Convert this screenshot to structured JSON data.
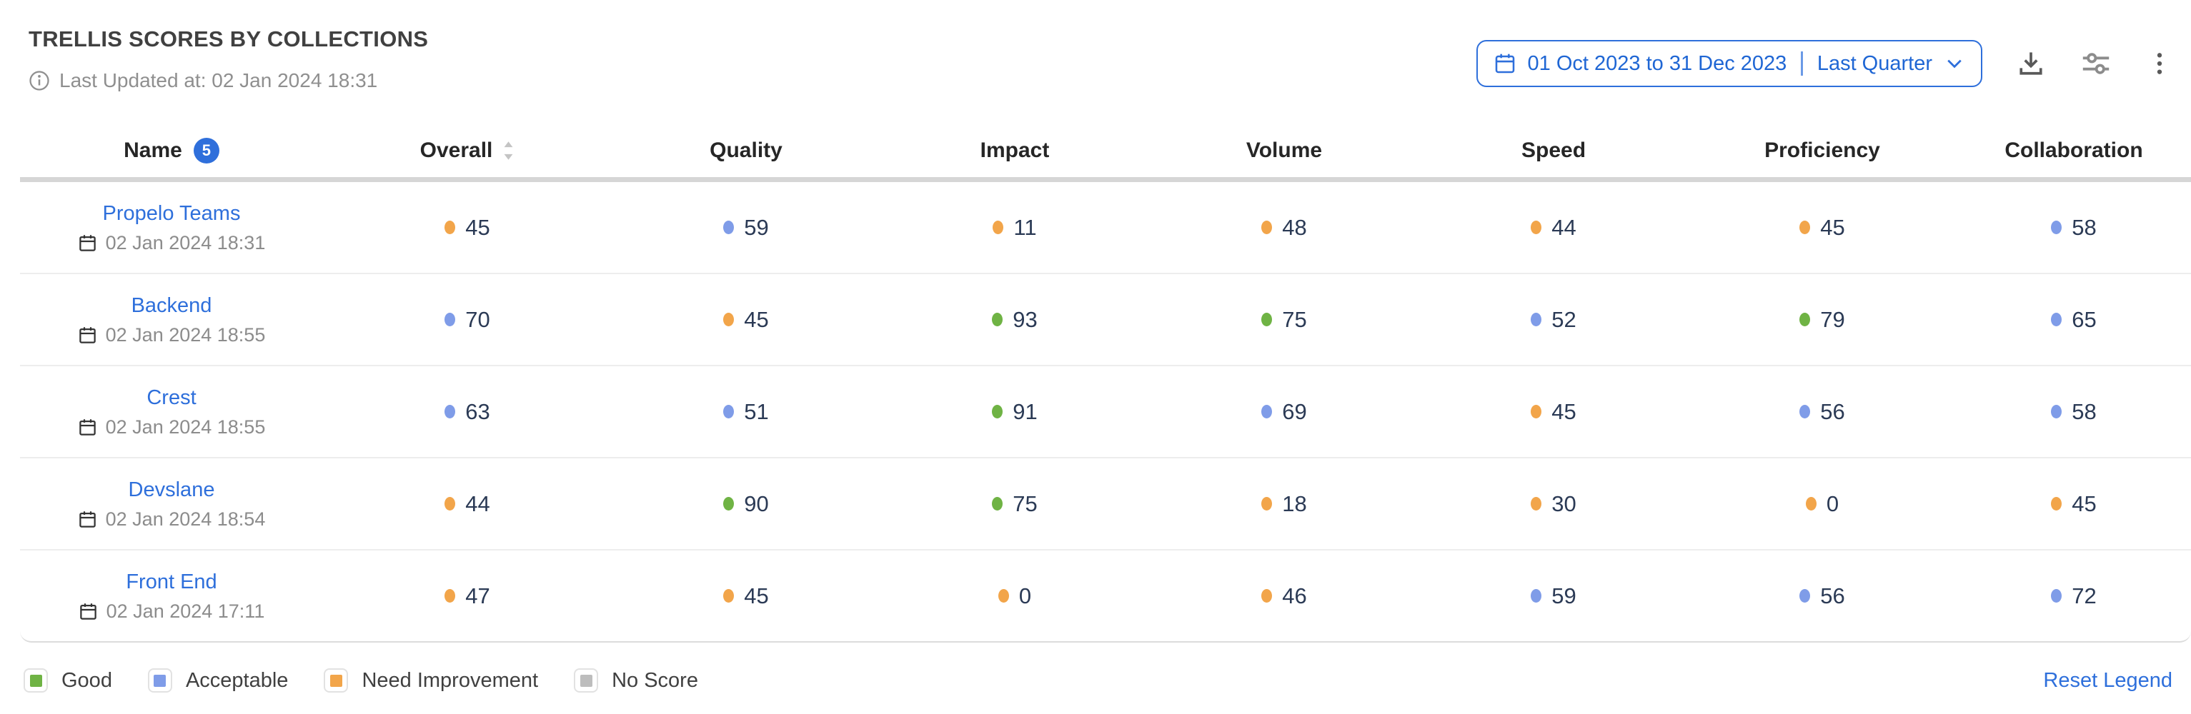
{
  "header": {
    "title": "TRELLIS SCORES BY COLLECTIONS",
    "last_updated": "Last Updated at: 02 Jan 2024 18:31",
    "date_range": "01 Oct 2023 to 31 Dec 2023",
    "date_preset": "Last Quarter"
  },
  "table": {
    "columns": [
      "Name",
      "Overall",
      "Quality",
      "Impact",
      "Volume",
      "Speed",
      "Proficiency",
      "Collaboration"
    ],
    "name_count_badge": "5",
    "rows": [
      {
        "name": "Propelo Teams",
        "date": "02 Jan 2024 18:31",
        "scores": [
          {
            "value": "45",
            "status": "need-improvement"
          },
          {
            "value": "59",
            "status": "acceptable"
          },
          {
            "value": "11",
            "status": "need-improvement"
          },
          {
            "value": "48",
            "status": "need-improvement"
          },
          {
            "value": "44",
            "status": "need-improvement"
          },
          {
            "value": "45",
            "status": "need-improvement"
          },
          {
            "value": "58",
            "status": "acceptable"
          }
        ]
      },
      {
        "name": "Backend",
        "date": "02 Jan 2024 18:55",
        "scores": [
          {
            "value": "70",
            "status": "acceptable"
          },
          {
            "value": "45",
            "status": "need-improvement"
          },
          {
            "value": "93",
            "status": "good"
          },
          {
            "value": "75",
            "status": "good"
          },
          {
            "value": "52",
            "status": "acceptable"
          },
          {
            "value": "79",
            "status": "good"
          },
          {
            "value": "65",
            "status": "acceptable"
          }
        ]
      },
      {
        "name": "Crest",
        "date": "02 Jan 2024 18:55",
        "scores": [
          {
            "value": "63",
            "status": "acceptable"
          },
          {
            "value": "51",
            "status": "acceptable"
          },
          {
            "value": "91",
            "status": "good"
          },
          {
            "value": "69",
            "status": "acceptable"
          },
          {
            "value": "45",
            "status": "need-improvement"
          },
          {
            "value": "56",
            "status": "acceptable"
          },
          {
            "value": "58",
            "status": "acceptable"
          }
        ]
      },
      {
        "name": "Devslane",
        "date": "02 Jan 2024 18:54",
        "scores": [
          {
            "value": "44",
            "status": "need-improvement"
          },
          {
            "value": "90",
            "status": "good"
          },
          {
            "value": "75",
            "status": "good"
          },
          {
            "value": "18",
            "status": "need-improvement"
          },
          {
            "value": "30",
            "status": "need-improvement"
          },
          {
            "value": "0",
            "status": "need-improvement"
          },
          {
            "value": "45",
            "status": "need-improvement"
          }
        ]
      },
      {
        "name": "Front End",
        "date": "02 Jan 2024 17:11",
        "scores": [
          {
            "value": "47",
            "status": "need-improvement"
          },
          {
            "value": "45",
            "status": "need-improvement"
          },
          {
            "value": "0",
            "status": "need-improvement"
          },
          {
            "value": "46",
            "status": "need-improvement"
          },
          {
            "value": "59",
            "status": "acceptable"
          },
          {
            "value": "56",
            "status": "acceptable"
          },
          {
            "value": "72",
            "status": "acceptable"
          }
        ]
      }
    ]
  },
  "legend": {
    "items": [
      {
        "label": "Good",
        "status": "good"
      },
      {
        "label": "Acceptable",
        "status": "acceptable"
      },
      {
        "label": "Need Improvement",
        "status": "need-improvement"
      },
      {
        "label": "No Score",
        "status": "no-score"
      }
    ],
    "reset_label": "Reset Legend"
  },
  "colors": {
    "good": "#6fb344",
    "acceptable": "#7f9ce8",
    "need-improvement": "#f2a54a",
    "no-score": "#bdbdbd",
    "accent_blue": "#2e6fdb"
  }
}
